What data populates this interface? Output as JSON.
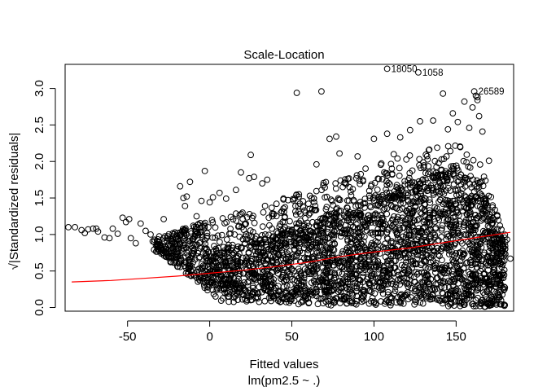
{
  "chart_data": {
    "type": "scatter",
    "title": "Scale-Location",
    "xlabel": "Fitted values",
    "xlabel_sub": "lm(pm2.5 ~ .)",
    "ylabel": "√|Standardized residuals|",
    "xlim": [
      -88,
      185
    ],
    "ylim": [
      -0.05,
      3.33
    ],
    "x_ticks": [
      -50,
      0,
      50,
      100,
      150
    ],
    "y_ticks": [
      0.0,
      0.5,
      1.0,
      1.5,
      2.0,
      2.5,
      3.0
    ],
    "x_tick_labels": [
      "-50",
      "0",
      "50",
      "100",
      "150"
    ],
    "y_tick_labels": [
      "0.0",
      "0.5",
      "1.0",
      "1.5",
      "2.0",
      "2.5",
      "3.0"
    ],
    "grid": false,
    "colors": {
      "points": "#000000",
      "smoother": "#ff0000"
    },
    "labeled_points": [
      {
        "label": "18050",
        "x": 108,
        "y": 3.27
      },
      {
        "label": "1058",
        "x": 127,
        "y": 3.22
      },
      {
        "label": "26589",
        "x": 161,
        "y": 2.96
      }
    ],
    "outlier_points": [
      {
        "x": -86,
        "y": 1.1
      },
      {
        "x": -82,
        "y": 1.1
      },
      {
        "x": -78,
        "y": 1.06
      },
      {
        "x": -76,
        "y": 1.02
      },
      {
        "x": -74,
        "y": 1.07
      },
      {
        "x": -71,
        "y": 1.08
      },
      {
        "x": -69,
        "y": 1.08
      },
      {
        "x": -68,
        "y": 1.04
      },
      {
        "x": -64,
        "y": 0.96
      },
      {
        "x": -61,
        "y": 0.95
      },
      {
        "x": -59,
        "y": 1.08
      },
      {
        "x": -56,
        "y": 1.01
      },
      {
        "x": -53,
        "y": 1.23
      },
      {
        "x": -51,
        "y": 1.17
      },
      {
        "x": -49,
        "y": 1.21
      },
      {
        "x": -48,
        "y": 0.95
      },
      {
        "x": -45,
        "y": 0.88
      },
      {
        "x": -42,
        "y": 1.15
      },
      {
        "x": -39,
        "y": 1.05
      },
      {
        "x": -36,
        "y": 1.0
      },
      {
        "x": -28,
        "y": 1.21
      },
      {
        "x": -26,
        "y": 0.95
      },
      {
        "x": -18,
        "y": 1.66
      },
      {
        "x": -16,
        "y": 1.5
      },
      {
        "x": -15,
        "y": 1.39
      },
      {
        "x": -14,
        "y": 1.52
      },
      {
        "x": -12,
        "y": 1.72
      },
      {
        "x": -10,
        "y": 1.12
      },
      {
        "x": -8,
        "y": 1.25
      },
      {
        "x": -5,
        "y": 1.46
      },
      {
        "x": -3,
        "y": 1.87
      },
      {
        "x": 0,
        "y": 1.44
      },
      {
        "x": 2,
        "y": 1.51
      },
      {
        "x": 6,
        "y": 1.57
      },
      {
        "x": 10,
        "y": 1.49
      },
      {
        "x": 16,
        "y": 1.61
      },
      {
        "x": 19,
        "y": 1.85
      },
      {
        "x": 20,
        "y": 1.3
      },
      {
        "x": 24,
        "y": 1.77
      },
      {
        "x": 25,
        "y": 2.09
      },
      {
        "x": 27,
        "y": 1.79
      },
      {
        "x": 32,
        "y": 1.7
      },
      {
        "x": 35,
        "y": 1.75
      },
      {
        "x": 53,
        "y": 2.94
      },
      {
        "x": 61,
        "y": 1.53
      },
      {
        "x": 65,
        "y": 1.96
      },
      {
        "x": 68,
        "y": 2.96
      },
      {
        "x": 73,
        "y": 2.31
      },
      {
        "x": 77,
        "y": 2.34
      },
      {
        "x": 79,
        "y": 2.11
      },
      {
        "x": 81,
        "y": 1.65
      },
      {
        "x": 90,
        "y": 2.07
      },
      {
        "x": 100,
        "y": 2.31
      },
      {
        "x": 108,
        "y": 2.38
      },
      {
        "x": 112,
        "y": 2.1
      },
      {
        "x": 116,
        "y": 2.33
      },
      {
        "x": 122,
        "y": 2.43
      },
      {
        "x": 128,
        "y": 2.55
      },
      {
        "x": 136,
        "y": 2.56
      },
      {
        "x": 142,
        "y": 2.93
      },
      {
        "x": 145,
        "y": 2.44
      },
      {
        "x": 148,
        "y": 2.66
      },
      {
        "x": 151,
        "y": 2.54
      },
      {
        "x": 155,
        "y": 2.82
      },
      {
        "x": 158,
        "y": 2.46
      },
      {
        "x": 160,
        "y": 2.74
      },
      {
        "x": 162,
        "y": 2.9
      },
      {
        "x": 163,
        "y": 2.88
      },
      {
        "x": 163,
        "y": 2.84
      },
      {
        "x": 164,
        "y": 2.62
      },
      {
        "x": 166,
        "y": 2.41
      },
      {
        "x": 170,
        "y": 2.01
      },
      {
        "x": 175,
        "y": 1.25
      },
      {
        "x": 178,
        "y": 0.92
      },
      {
        "x": 181,
        "y": 0.93
      },
      {
        "x": 183,
        "y": 0.67
      },
      {
        "x": 173,
        "y": 0.22
      },
      {
        "x": 165,
        "y": 0.37
      }
    ],
    "smoother": [
      {
        "x": -84,
        "y": 0.35
      },
      {
        "x": -60,
        "y": 0.37
      },
      {
        "x": -40,
        "y": 0.4
      },
      {
        "x": -20,
        "y": 0.43
      },
      {
        "x": 0,
        "y": 0.47
      },
      {
        "x": 20,
        "y": 0.51
      },
      {
        "x": 40,
        "y": 0.56
      },
      {
        "x": 60,
        "y": 0.62
      },
      {
        "x": 80,
        "y": 0.7
      },
      {
        "x": 100,
        "y": 0.76
      },
      {
        "x": 120,
        "y": 0.81
      },
      {
        "x": 140,
        "y": 0.88
      },
      {
        "x": 160,
        "y": 0.95
      },
      {
        "x": 183,
        "y": 1.03
      }
    ],
    "point_cloud": {
      "x_range": [
        -35,
        180
      ],
      "y_lower_edge": [
        {
          "x": -35,
          "y": 0.8
        },
        {
          "x": -20,
          "y": 0.55
        },
        {
          "x": -10,
          "y": 0.4
        },
        {
          "x": 0,
          "y": 0.2
        },
        {
          "x": 5,
          "y": 0.05
        },
        {
          "x": 180,
          "y": 0.0
        }
      ],
      "y_upper_edge": [
        {
          "x": -35,
          "y": 0.95
        },
        {
          "x": -20,
          "y": 1.05
        },
        {
          "x": 0,
          "y": 1.2
        },
        {
          "x": 40,
          "y": 1.45
        },
        {
          "x": 80,
          "y": 1.8
        },
        {
          "x": 120,
          "y": 2.1
        },
        {
          "x": 150,
          "y": 2.25
        },
        {
          "x": 165,
          "y": 2.0
        },
        {
          "x": 175,
          "y": 1.3
        },
        {
          "x": 180,
          "y": 0.9
        }
      ],
      "dense_lower_edge": [
        {
          "x": 0,
          "y": 0.3
        },
        {
          "x": 20,
          "y": 0.08
        },
        {
          "x": 180,
          "y": 0.02
        }
      ],
      "dense_upper_edge": [
        {
          "x": 0,
          "y": 0.75
        },
        {
          "x": 40,
          "y": 1.0
        },
        {
          "x": 80,
          "y": 1.35
        },
        {
          "x": 120,
          "y": 1.7
        },
        {
          "x": 150,
          "y": 1.95
        },
        {
          "x": 165,
          "y": 1.7
        },
        {
          "x": 175,
          "y": 1.0
        }
      ]
    }
  }
}
